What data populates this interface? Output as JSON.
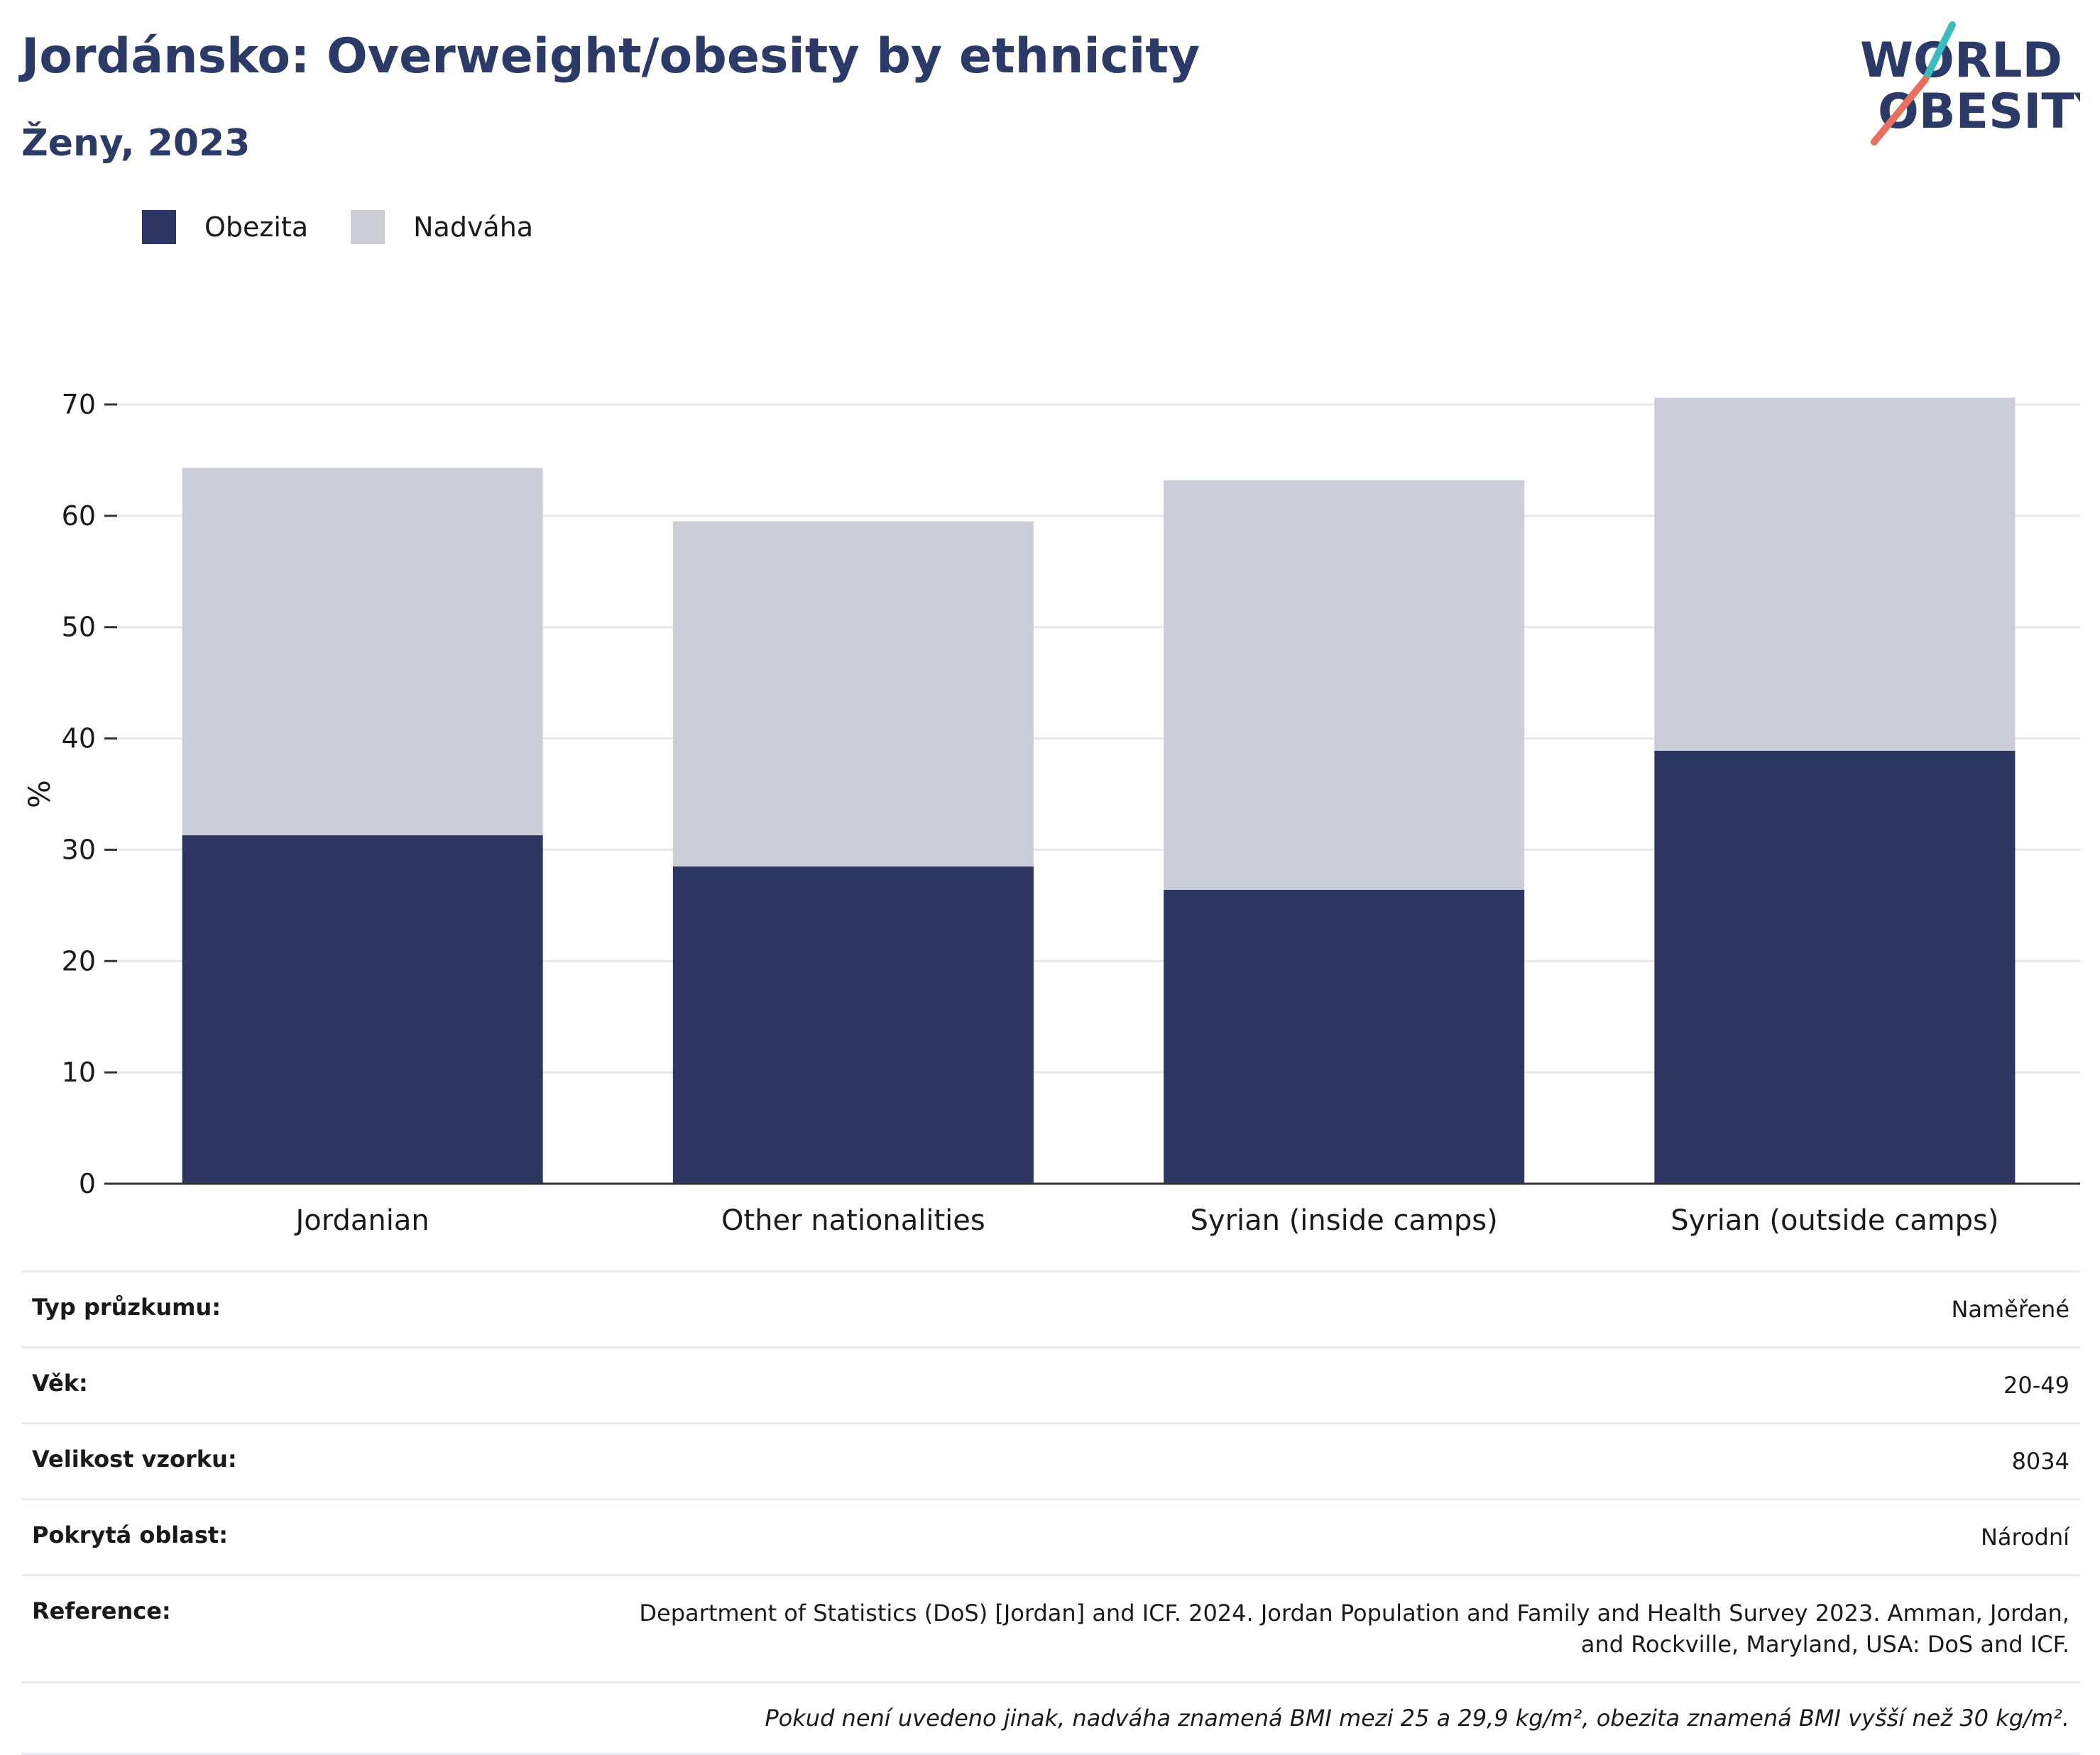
{
  "header": {
    "title": "Jordánsko: Overweight/obesity by ethnicity",
    "subtitle": "Ženy, 2023"
  },
  "logo": {
    "line1": "WORLD",
    "line2": "OBESITY"
  },
  "colors": {
    "obesity": "#2b3663",
    "overweight": "#cbcdd8",
    "title": "#2b3a67",
    "logo_teal": "#3dbcc0",
    "logo_coral": "#e8705f",
    "grid": "#e6e8ee",
    "axis": "#333333"
  },
  "legend": [
    {
      "label": "Obezita",
      "color_key": "obesity"
    },
    {
      "label": "Nadváha",
      "color_key": "overweight"
    }
  ],
  "chart_data": {
    "type": "bar",
    "stacked": true,
    "categories": [
      "Jordanian",
      "Other nationalities",
      "Syrian (inside camps)",
      "Syrian (outside camps)"
    ],
    "series": [
      {
        "name": "Obezita",
        "values": [
          31.3,
          28.5,
          26.4,
          38.9
        ]
      },
      {
        "name": "Nadváha",
        "values": [
          33.0,
          31.0,
          36.8,
          31.7
        ]
      }
    ],
    "ylabel": "%",
    "ylim": [
      0,
      70
    ],
    "yticks": [
      0,
      10,
      20,
      30,
      40,
      50,
      60,
      70
    ],
    "grid": true,
    "legend_position": "top-left"
  },
  "info": [
    {
      "key": "Typ průzkumu:",
      "value": "Naměřené"
    },
    {
      "key": "Věk:",
      "value": "20-49"
    },
    {
      "key": "Velikost vzorku:",
      "value": "8034"
    },
    {
      "key": "Pokrytá oblast:",
      "value": "Národní"
    },
    {
      "key": "Reference:",
      "value": "Department of Statistics (DoS) [Jordan] and ICF. 2024. Jordan Population and Family and Health Survey 2023. Amman, Jordan, and Rockville, Maryland, USA: DoS and ICF."
    }
  ],
  "footnote": "Pokud není uvedeno jinak, nadváha znamená BMI mezi 25 a 29,9 kg/m², obezita znamená BMI vyšší než 30 kg/m²."
}
